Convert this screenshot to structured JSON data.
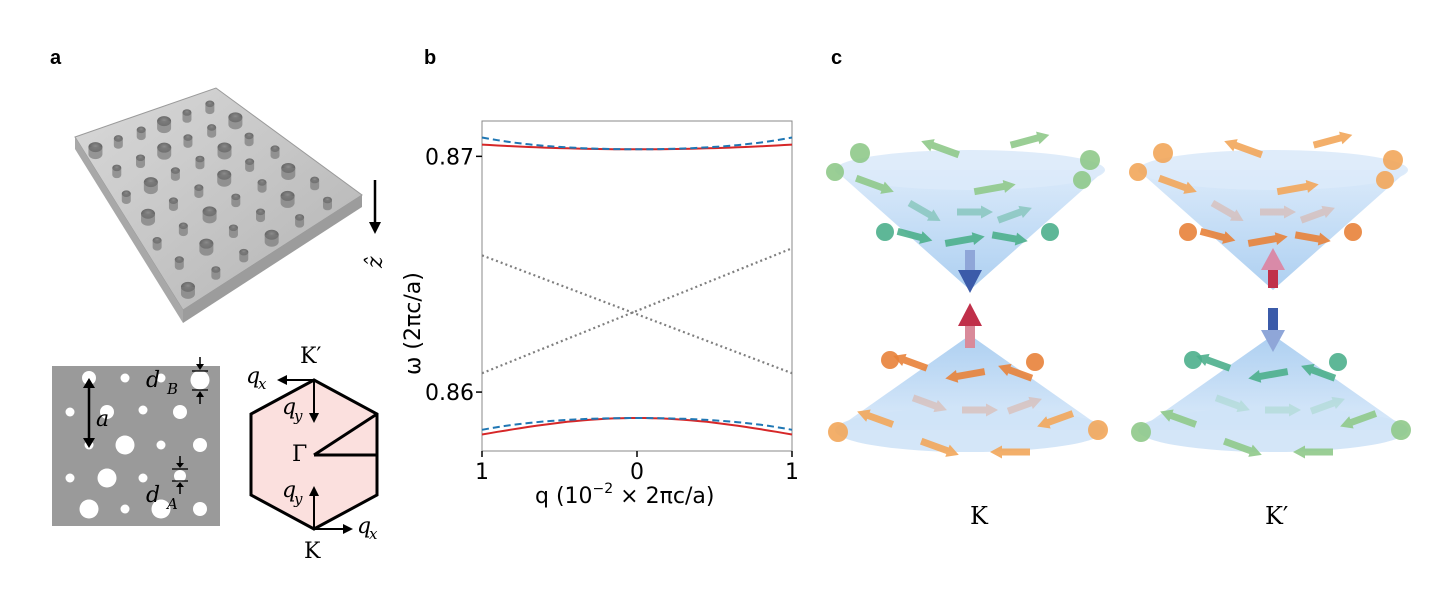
{
  "panels": {
    "a": {
      "letter": "a",
      "axis_label": "ẑ",
      "lattice_labels": {
        "a": "a",
        "dB": "d",
        "dB_sub": "B",
        "dA": "d",
        "dA_sub": "A"
      },
      "bz_labels": {
        "K_prime": "K′",
        "K": "K",
        "Gamma": "Γ",
        "qx": "q",
        "qx_sub": "x",
        "qy": "q",
        "qy_sub": "y"
      }
    },
    "b": {
      "letter": "b"
    },
    "c": {
      "letter": "c",
      "valley_left": "K",
      "valley_right": "K′"
    }
  },
  "colors": {
    "band_red": "#d62728",
    "band_blue": "#1f77b4",
    "dotted_gray": "#7f7f7f",
    "cone_fill": "#cfe3f7",
    "green": "#8fc98a",
    "teal": "#4daf8c",
    "orange": "#f2a65a",
    "dark_orange": "#e8823a",
    "arrow_blue": "#3b5ba9",
    "arrow_red": "#c0304a"
  },
  "chart_data": {
    "type": "line",
    "title": "",
    "xlabel": "q (10",
    "xlabel_sup": "−2",
    "xlabel_tail": " × 2πc/a)",
    "ylabel": "ω (2πc/a)",
    "xlim": [
      -1,
      1
    ],
    "ylim": [
      0.8575,
      0.8715
    ],
    "x_ticks": [
      -1,
      0,
      1
    ],
    "x_tick_labels": [
      "1",
      "0",
      "1"
    ],
    "y_ticks": [
      0.86,
      0.87
    ],
    "y_tick_labels": [
      "0.86",
      "0.87"
    ],
    "series": [
      {
        "name": "upper-red",
        "style": "solid",
        "color": "#d62728",
        "x": [
          -1,
          -0.5,
          0,
          0.5,
          1
        ],
        "y": [
          0.8705,
          0.87035,
          0.8703,
          0.87035,
          0.8705
        ]
      },
      {
        "name": "upper-blue",
        "style": "dashed",
        "color": "#1f77b4",
        "x": [
          -1,
          -0.5,
          0,
          0.5,
          1
        ],
        "y": [
          0.8708,
          0.8704,
          0.8703,
          0.8704,
          0.8708
        ]
      },
      {
        "name": "lower-red",
        "style": "solid",
        "color": "#d62728",
        "x": [
          -1,
          -0.5,
          0,
          0.5,
          1
        ],
        "y": [
          0.8582,
          0.8587,
          0.8589,
          0.8587,
          0.8582
        ]
      },
      {
        "name": "lower-blue",
        "style": "dashed",
        "color": "#1f77b4",
        "x": [
          -1,
          -0.5,
          0,
          0.5,
          1
        ],
        "y": [
          0.8584,
          0.8588,
          0.8589,
          0.8588,
          0.8584
        ]
      },
      {
        "name": "gapless-1",
        "style": "dotted",
        "color": "#7f7f7f",
        "x": [
          -1,
          1
        ],
        "y": [
          0.8658,
          0.8608
        ]
      },
      {
        "name": "gapless-2",
        "style": "dotted",
        "color": "#7f7f7f",
        "x": [
          -1,
          1
        ],
        "y": [
          0.8608,
          0.8661
        ]
      }
    ]
  }
}
